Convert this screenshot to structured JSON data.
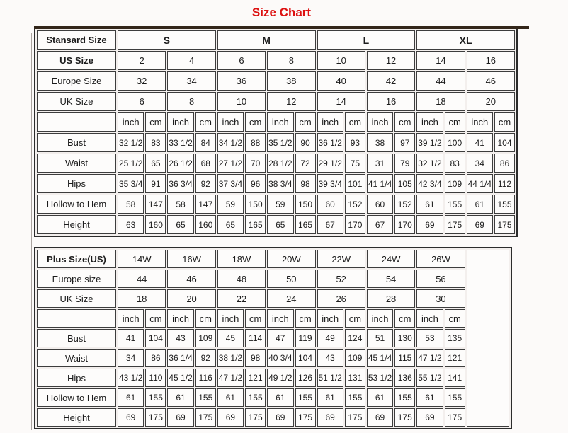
{
  "page": {
    "title": "Size Chart",
    "colors": {
      "title": "#dd1111",
      "border": "#2d2d2d"
    }
  },
  "chart_data": [
    {
      "type": "table",
      "name": "standard-sizes",
      "corner_label": "Stansard Size",
      "size_row": {
        "values": [
          "S",
          "M",
          "L",
          "XL"
        ],
        "colspan": 4,
        "bold": true
      },
      "header_rows": [
        {
          "label": "US Size",
          "bold": true,
          "values": [
            "2",
            "4",
            "6",
            "8",
            "10",
            "12",
            "14",
            "16"
          ]
        },
        {
          "label": "Europe Size",
          "bold": false,
          "values": [
            "32",
            "34",
            "36",
            "38",
            "40",
            "42",
            "44",
            "46"
          ]
        },
        {
          "label": "UK Size",
          "bold": false,
          "values": [
            "6",
            "8",
            "10",
            "12",
            "14",
            "16",
            "18",
            "20"
          ]
        }
      ],
      "unit_pairs": 8,
      "unit_labels": [
        "inch",
        "cm"
      ],
      "body_rows": [
        {
          "label": "Bust",
          "values": [
            "32 1/2",
            "83",
            "33 1/2",
            "84",
            "34 1/2",
            "88",
            "35 1/2",
            "90",
            "36 1/2",
            "93",
            "38",
            "97",
            "39 1/2",
            "100",
            "41",
            "104"
          ]
        },
        {
          "label": "Waist",
          "values": [
            "25 1/2",
            "65",
            "26 1/2",
            "68",
            "27 1/2",
            "70",
            "28 1/2",
            "72",
            "29 1/2",
            "75",
            "31",
            "79",
            "32 1/2",
            "83",
            "34",
            "86"
          ]
        },
        {
          "label": "Hips",
          "values": [
            "35 3/4",
            "91",
            "36 3/4",
            "92",
            "37 3/4",
            "96",
            "38 3/4",
            "98",
            "39 3/4",
            "101",
            "41 1/4",
            "105",
            "42 3/4",
            "109",
            "44 1/4",
            "112"
          ]
        },
        {
          "label": "Hollow to Hem",
          "values": [
            "58",
            "147",
            "58",
            "147",
            "59",
            "150",
            "59",
            "150",
            "60",
            "152",
            "60",
            "152",
            "61",
            "155",
            "61",
            "155"
          ]
        },
        {
          "label": "Height",
          "values": [
            "63",
            "160",
            "65",
            "160",
            "65",
            "165",
            "65",
            "165",
            "67",
            "170",
            "67",
            "170",
            "69",
            "175",
            "69",
            "175"
          ]
        }
      ],
      "trailing_empty_column": false
    },
    {
      "type": "table",
      "name": "plus-sizes",
      "corner_label": "Plus Size(US)",
      "size_row": {
        "values": [
          "14W",
          "16W",
          "18W",
          "20W",
          "22W",
          "24W",
          "26W"
        ],
        "colspan": 2,
        "bold": false
      },
      "header_rows": [
        {
          "label": "Europe size",
          "bold": false,
          "values": [
            "44",
            "46",
            "48",
            "50",
            "52",
            "54",
            "56"
          ]
        },
        {
          "label": "UK Size",
          "bold": false,
          "values": [
            "18",
            "20",
            "22",
            "24",
            "26",
            "28",
            "30"
          ]
        }
      ],
      "unit_pairs": 7,
      "unit_labels": [
        "inch",
        "cm"
      ],
      "body_rows": [
        {
          "label": "Bust",
          "values": [
            "41",
            "104",
            "43",
            "109",
            "45",
            "114",
            "47",
            "119",
            "49",
            "124",
            "51",
            "130",
            "53",
            "135"
          ]
        },
        {
          "label": "Waist",
          "values": [
            "34",
            "86",
            "36 1/4",
            "92",
            "38 1/2",
            "98",
            "40 3/4",
            "104",
            "43",
            "109",
            "45 1/4",
            "115",
            "47 1/2",
            "121"
          ]
        },
        {
          "label": "Hips",
          "values": [
            "43 1/2",
            "110",
            "45 1/2",
            "116",
            "47 1/2",
            "121",
            "49 1/2",
            "126",
            "51 1/2",
            "131",
            "53 1/2",
            "136",
            "55 1/2",
            "141"
          ]
        },
        {
          "label": "Hollow to Hem",
          "values": [
            "61",
            "155",
            "61",
            "155",
            "61",
            "155",
            "61",
            "155",
            "61",
            "155",
            "61",
            "155",
            "61",
            "155"
          ]
        },
        {
          "label": "Height",
          "values": [
            "69",
            "175",
            "69",
            "175",
            "69",
            "175",
            "69",
            "175",
            "69",
            "175",
            "69",
            "175",
            "69",
            "175"
          ]
        }
      ],
      "trailing_empty_column": true
    }
  ]
}
